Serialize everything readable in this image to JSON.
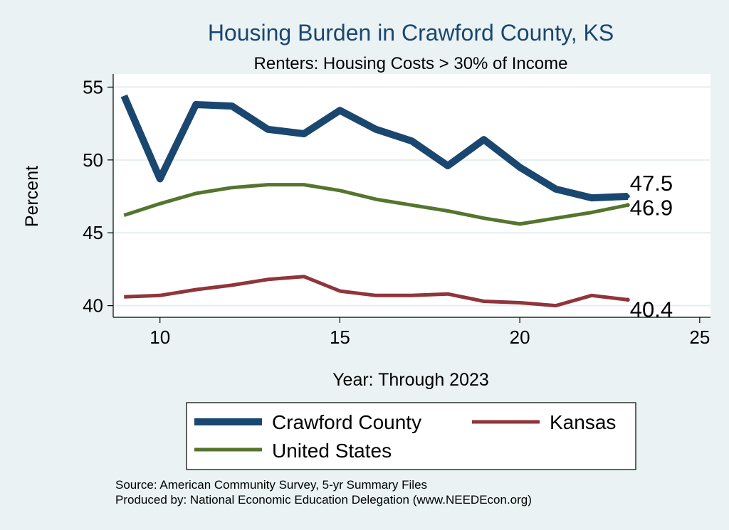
{
  "chart_data": {
    "type": "line",
    "title": "Housing Burden in Crawford County, KS",
    "subtitle": "Renters: Housing Costs > 30% of Income",
    "xlabel": "Year: Through 2023",
    "ylabel": "Percent",
    "xlim": [
      8.7,
      25.3
    ],
    "ylim": [
      39.2,
      55.9
    ],
    "x_ticks": [
      10,
      15,
      20,
      25
    ],
    "y_ticks": [
      40,
      45,
      50,
      55
    ],
    "grid": true,
    "x": [
      9,
      10,
      11,
      12,
      13,
      14,
      15,
      16,
      17,
      18,
      19,
      20,
      21,
      22,
      23
    ],
    "series": [
      {
        "name": "Crawford County",
        "color": "#1a476f",
        "values": [
          54.4,
          48.7,
          53.8,
          53.7,
          52.1,
          51.8,
          53.4,
          52.1,
          51.3,
          49.6,
          51.4,
          49.5,
          48.0,
          47.4,
          47.5
        ],
        "end_label": "47.5"
      },
      {
        "name": "Kansas",
        "color": "#90353b",
        "values": [
          40.6,
          40.7,
          41.1,
          41.4,
          41.8,
          42.0,
          41.0,
          40.7,
          40.7,
          40.8,
          40.3,
          40.2,
          40.0,
          40.7,
          40.4
        ],
        "end_label": "40.4"
      },
      {
        "name": "United States",
        "color": "#55752f",
        "values": [
          46.2,
          47.0,
          47.7,
          48.1,
          48.3,
          48.3,
          47.9,
          47.3,
          46.9,
          46.5,
          46.0,
          45.6,
          46.0,
          46.4,
          46.9
        ],
        "end_label": "46.9"
      }
    ],
    "legend": {
      "position": "bottom",
      "entries": [
        "Crawford County",
        "Kansas",
        "United States"
      ]
    }
  },
  "notes": {
    "source": "Source: American Community Survey, 5-yr Summary Files",
    "produced_by": "Produced by: National Economic Education Delegation (www.NEEDEcon.org)"
  },
  "colors": {
    "background": "#eaf2f3",
    "plot_background": "#ffffff",
    "title": "#1a476f"
  }
}
